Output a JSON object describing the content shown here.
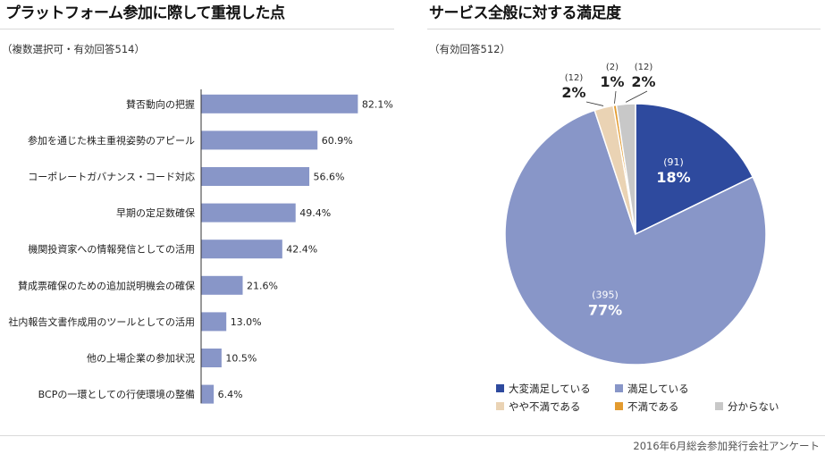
{
  "left": {
    "title": "プラットフォーム参加に際して重視した点",
    "subtitle": "（複数選択可・有効回答514）"
  },
  "right": {
    "title": "サービス全般に対する満足度",
    "subtitle": "（有効回答512）"
  },
  "footer": {
    "note": "2016年6月総会参加発行会社アンケート"
  },
  "chart_data": [
    {
      "type": "bar",
      "orientation": "horizontal",
      "title": "プラットフォーム参加に際して重視した点",
      "subtitle": "（複数選択可・有効回答514）",
      "categories": [
        "賛否動向の把握",
        "参加を通じた株主重視姿勢のアピール",
        "コーポレートガバナンス・コード対応",
        "早期の定足数確保",
        "機関投資家への情報発信としての活用",
        "賛成票確保のための追加説明機会の確保",
        "社内報告文書作成用のツールとしての活用",
        "他の上場企業の参加状況",
        "BCPの一環としての行使環境の整備"
      ],
      "values": [
        82.1,
        60.9,
        56.6,
        49.4,
        42.4,
        21.6,
        13.0,
        10.5,
        6.4
      ],
      "value_labels": [
        "82.1%",
        "60.9%",
        "56.6%",
        "49.4%",
        "42.4%",
        "21.6%",
        "13.0%",
        "10.5%",
        "6.4%"
      ],
      "xlim": [
        0,
        100
      ],
      "bar_color": "#8896c8",
      "grid": false
    },
    {
      "type": "pie",
      "title": "サービス全般に対する満足度",
      "subtitle": "（有効回答512）",
      "start": "12 o'clock, clockwise",
      "slices": [
        {
          "label": "大変満足している",
          "count": 91,
          "count_label": "(91)",
          "percent_label": "18%",
          "color": "#2e4a9e"
        },
        {
          "label": "満足している",
          "count": 395,
          "count_label": "(395)",
          "percent_label": "77%",
          "color": "#8896c8"
        },
        {
          "label": "やや不満である",
          "count": 12,
          "count_label": "(12)",
          "percent_label": "2%",
          "color": "#ead3b4"
        },
        {
          "label": "不満である",
          "count": 2,
          "count_label": "(2)",
          "percent_label": "1%",
          "color": "#e39b2f"
        },
        {
          "label": "分からない",
          "count": 12,
          "count_label": "(12)",
          "percent_label": "2%",
          "color": "#c8c8c8"
        }
      ],
      "legend_position": "bottom"
    }
  ]
}
